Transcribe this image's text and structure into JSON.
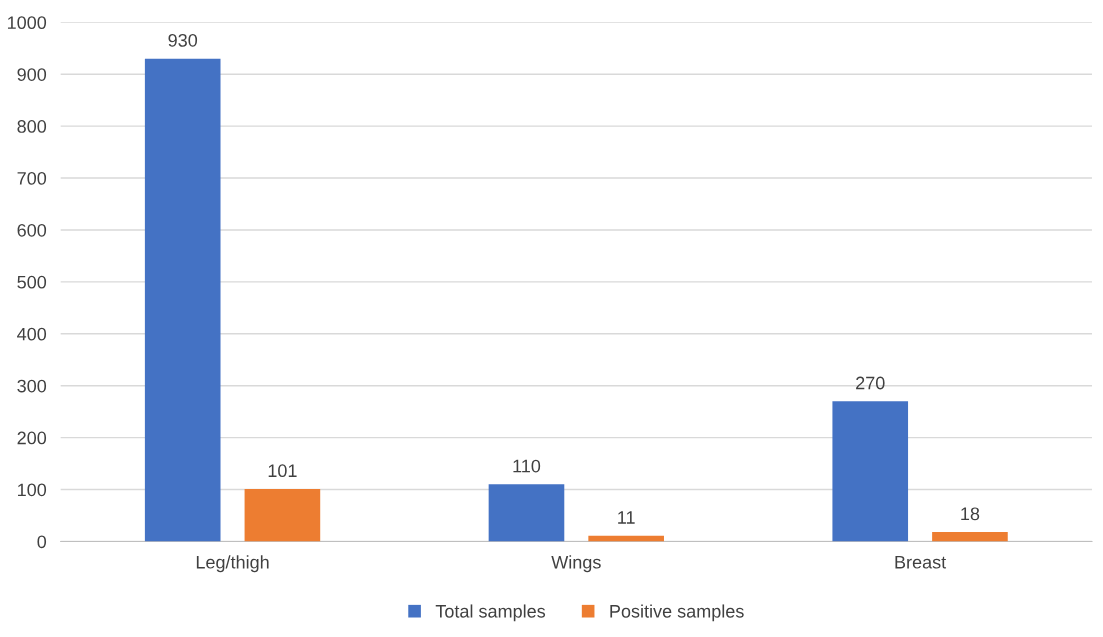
{
  "chart_data": {
    "type": "bar",
    "categories": [
      "Leg/thigh",
      "Wings",
      "Breast"
    ],
    "series": [
      {
        "name": "Total samples",
        "color": "#4472c4",
        "values": [
          930,
          110,
          270
        ]
      },
      {
        "name": "Positive samples",
        "color": "#ed7d31",
        "values": [
          101,
          11,
          18
        ]
      }
    ],
    "ylim": [
      0,
      1000
    ],
    "yticks": [
      0,
      100,
      200,
      300,
      400,
      500,
      600,
      700,
      800,
      900,
      1000
    ],
    "grid": "y",
    "legend": "bottom",
    "data_labels": true
  }
}
